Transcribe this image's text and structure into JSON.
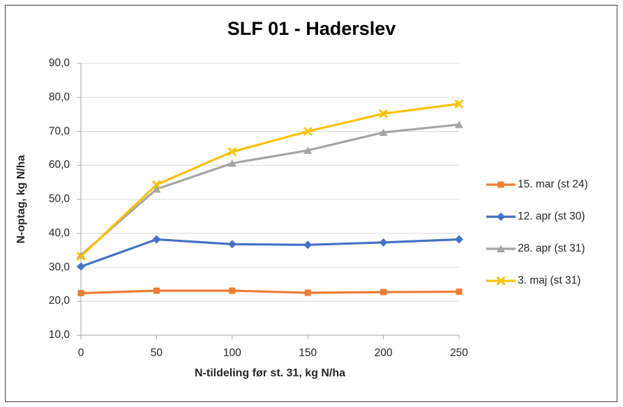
{
  "chart_data": {
    "type": "line",
    "title": "SLF 01 - Haderslev",
    "xlabel": "N-tildeling før st. 31, kg N/ha",
    "ylabel": "N-optag, kg N/ha",
    "x": [
      0,
      50,
      100,
      150,
      200,
      250
    ],
    "xtick_labels": [
      "0",
      "50",
      "100",
      "150",
      "200",
      "250"
    ],
    "ytick_values": [
      10,
      20,
      30,
      40,
      50,
      60,
      70,
      80,
      90
    ],
    "ytick_labels": [
      "10,0",
      "20,0",
      "30,0",
      "40,0",
      "50,0",
      "60,0",
      "70,0",
      "80,0",
      "90,0"
    ],
    "xlim": [
      0,
      250
    ],
    "ylim": [
      10,
      90
    ],
    "grid": "horizontal-major",
    "legend_position": "right",
    "series": [
      {
        "name": "15. mar (st 24)",
        "marker": "square",
        "color": "#ED7D31",
        "values": [
          22.4,
          23.1,
          23.1,
          22.5,
          22.7,
          22.8
        ]
      },
      {
        "name": "12. apr (st 30)",
        "marker": "diamond",
        "color": "#4472C4",
        "values": [
          30.2,
          38.2,
          36.8,
          36.6,
          37.3,
          38.2
        ]
      },
      {
        "name": "28. apr (st 31)",
        "marker": "triangle",
        "color": "#A5A5A5",
        "values": [
          33.6,
          53.0,
          60.6,
          64.4,
          69.7,
          72.0
        ]
      },
      {
        "name": "3. maj (st 31)",
        "marker": "x",
        "color": "#FFC000",
        "values": [
          33.2,
          54.3,
          64.0,
          70.0,
          75.2,
          78.1
        ]
      }
    ],
    "colors": {
      "gridline": "#D9D9D9",
      "axis": "#A6A6A6",
      "text": "#262626",
      "frame_border": "#404040"
    }
  }
}
